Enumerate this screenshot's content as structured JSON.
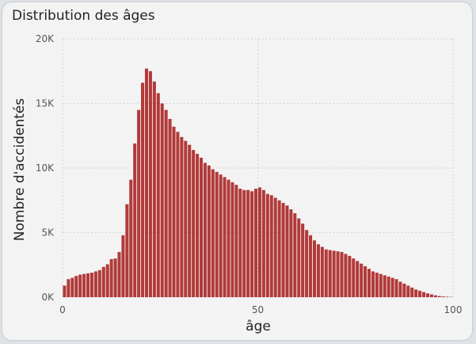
{
  "colors": {
    "bar": "#b23a3a",
    "bar_stroke": "#8e2727",
    "grid": "#c8c8c8",
    "card_bg": "#f3f3f3"
  },
  "chart_data": {
    "type": "bar",
    "title": "Distribution des âges",
    "xlabel": "âge",
    "ylabel": "Nombre d'accidentés",
    "xlim": [
      0,
      100
    ],
    "ylim": [
      0,
      20000
    ],
    "x_ticks": [
      0,
      50,
      100
    ],
    "x_tick_labels": [
      "0",
      "50",
      "100"
    ],
    "y_ticks": [
      0,
      5000,
      10000,
      15000,
      20000
    ],
    "y_tick_labels": [
      "0K",
      "5K",
      "10K",
      "15K",
      "20K"
    ],
    "grid": true,
    "x": [
      0,
      1,
      2,
      3,
      4,
      5,
      6,
      7,
      8,
      9,
      10,
      11,
      12,
      13,
      14,
      15,
      16,
      17,
      18,
      19,
      20,
      21,
      22,
      23,
      24,
      25,
      26,
      27,
      28,
      29,
      30,
      31,
      32,
      33,
      34,
      35,
      36,
      37,
      38,
      39,
      40,
      41,
      42,
      43,
      44,
      45,
      46,
      47,
      48,
      49,
      50,
      51,
      52,
      53,
      54,
      55,
      56,
      57,
      58,
      59,
      60,
      61,
      62,
      63,
      64,
      65,
      66,
      67,
      68,
      69,
      70,
      71,
      72,
      73,
      74,
      75,
      76,
      77,
      78,
      79,
      80,
      81,
      82,
      83,
      84,
      85,
      86,
      87,
      88,
      89,
      90,
      91,
      92,
      93,
      94,
      95,
      96,
      97,
      98,
      99
    ],
    "values": [
      900,
      1400,
      1500,
      1650,
      1750,
      1800,
      1850,
      1900,
      2000,
      2100,
      2350,
      2550,
      2950,
      3000,
      3500,
      4800,
      7200,
      9100,
      11900,
      14500,
      16600,
      17700,
      17500,
      16700,
      15800,
      15000,
      14500,
      13800,
      13200,
      12800,
      12400,
      12100,
      11800,
      11400,
      11100,
      10800,
      10400,
      10200,
      9900,
      9700,
      9500,
      9300,
      9100,
      8900,
      8700,
      8400,
      8300,
      8300,
      8200,
      8400,
      8500,
      8300,
      8000,
      7900,
      7700,
      7500,
      7300,
      7100,
      6800,
      6500,
      6100,
      5700,
      5200,
      4800,
      4400,
      4100,
      3900,
      3700,
      3650,
      3600,
      3550,
      3500,
      3350,
      3200,
      3000,
      2800,
      2600,
      2400,
      2200,
      2000,
      1900,
      1800,
      1700,
      1600,
      1500,
      1400,
      1200,
      1050,
      900,
      750,
      600,
      500,
      400,
      300,
      220,
      150,
      90,
      60,
      40,
      20
    ]
  }
}
